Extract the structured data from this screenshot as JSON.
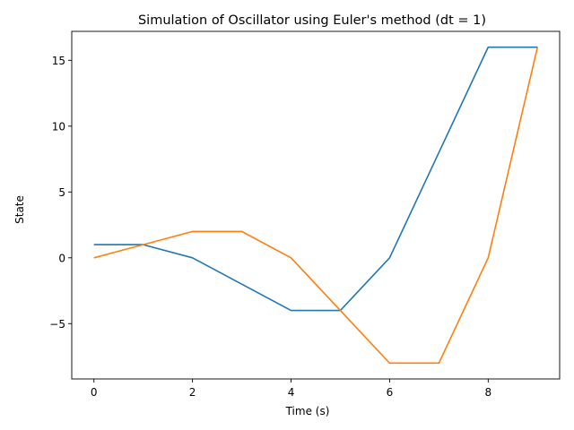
{
  "chart_data": {
    "type": "line",
    "title": "Simulation of Oscillator using Euler's method (dt = 1)",
    "xlabel": "Time (s)",
    "ylabel": "State",
    "x": [
      0,
      1,
      2,
      3,
      4,
      5,
      6,
      7,
      8,
      9
    ],
    "xlim": [
      -0.45,
      9.45
    ],
    "ylim": [
      -9.2,
      17.2
    ],
    "xticks": [
      0,
      2,
      4,
      6,
      8
    ],
    "yticks": [
      -5,
      0,
      5,
      10,
      15
    ],
    "grid": false,
    "legend": "none",
    "series": [
      {
        "color": "#1f77b4",
        "values": [
          1,
          1,
          0,
          -2,
          -4,
          -4,
          0,
          8,
          16,
          16
        ]
      },
      {
        "color": "#ff7f0e",
        "values": [
          0,
          1,
          2,
          2,
          0,
          -4,
          -8,
          -8,
          0,
          16
        ]
      }
    ]
  }
}
